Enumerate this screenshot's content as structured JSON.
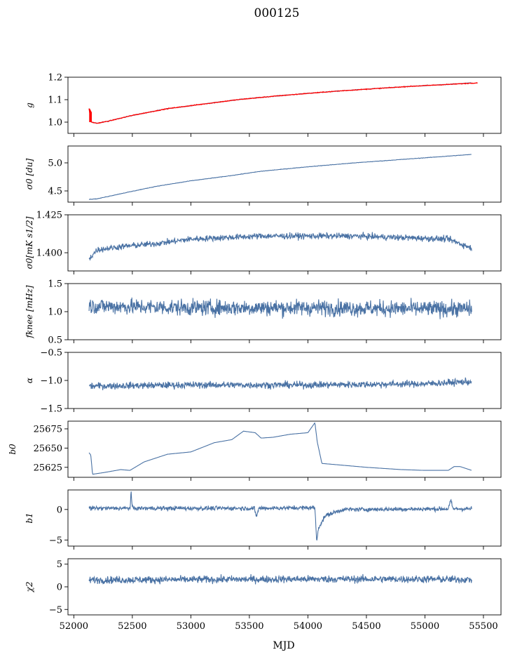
{
  "figure": {
    "title": "000125",
    "xlabel": "MJD",
    "line_color": "#4a72a4",
    "fit_color": "#ff0000"
  },
  "chart_data": [
    {
      "type": "line",
      "ylabel": "g",
      "ylim": [
        0.95,
        1.2
      ],
      "yticks": [
        1.0,
        1.1,
        1.2
      ],
      "ytick_labels": [
        "1.0",
        "1.1",
        "1.2"
      ],
      "xlim": [
        51950,
        55650
      ],
      "series": [
        {
          "shape": "smooth",
          "color": "#4a72a4",
          "x": [
            52130,
            52150,
            52200,
            52300,
            52500,
            52800,
            53100,
            53400,
            53700,
            54000,
            54300,
            54600,
            54900,
            55200,
            55400
          ],
          "y": [
            1.06,
            1.0,
            0.995,
            1.005,
            1.03,
            1.06,
            1.08,
            1.1,
            1.115,
            1.128,
            1.14,
            1.15,
            1.16,
            1.168,
            1.175
          ]
        },
        {
          "shape": "smooth",
          "color": "#ff0000",
          "x": [
            52130,
            52150,
            52200,
            52300,
            52500,
            52800,
            53100,
            53400,
            53700,
            54000,
            54300,
            54600,
            54900,
            55200,
            55450
          ],
          "y": [
            1.06,
            1.0,
            0.995,
            1.005,
            1.03,
            1.06,
            1.08,
            1.1,
            1.115,
            1.128,
            1.14,
            1.15,
            1.16,
            1.168,
            1.175
          ]
        }
      ]
    },
    {
      "type": "line",
      "ylabel": "σ0 [du]",
      "ylim": [
        4.3,
        5.3
      ],
      "yticks": [
        4.5,
        5.0
      ],
      "ytick_labels": [
        "4.5",
        "5.0"
      ],
      "xlim": [
        51950,
        55650
      ],
      "series": [
        {
          "shape": "smooth",
          "color": "#4a72a4",
          "x": [
            52130,
            52200,
            52400,
            52700,
            53000,
            53300,
            53600,
            54000,
            54400,
            54800,
            55200,
            55400
          ],
          "y": [
            4.35,
            4.36,
            4.45,
            4.58,
            4.68,
            4.76,
            4.85,
            4.93,
            5.0,
            5.06,
            5.12,
            5.15
          ]
        }
      ]
    },
    {
      "type": "line",
      "ylabel": "σ0[mK s1/2]",
      "ylim": [
        1.388,
        1.425
      ],
      "yticks": [
        1.4,
        1.425
      ],
      "ytick_labels": [
        "1.400",
        "1.425"
      ],
      "xlim": [
        51950,
        55650
      ],
      "series": [
        {
          "shape": "noisy",
          "color": "#4a72a4",
          "x": [
            52130,
            52200,
            52400,
            52700,
            53000,
            53300,
            53600,
            54000,
            54400,
            54800,
            55200,
            55400
          ],
          "y": [
            1.396,
            1.402,
            1.404,
            1.406,
            1.409,
            1.41,
            1.411,
            1.411,
            1.411,
            1.41,
            1.409,
            1.403
          ],
          "amp": 0.002
        }
      ]
    },
    {
      "type": "line",
      "ylabel": "fknee [mHz]",
      "ylim": [
        0.5,
        1.5
      ],
      "yticks": [
        0.5,
        1.0,
        1.5
      ],
      "ytick_labels": [
        "0.5",
        "1.0",
        "1.5"
      ],
      "xlim": [
        51950,
        55650
      ],
      "series": [
        {
          "shape": "noisy",
          "color": "#4a72a4",
          "x": [
            52130,
            53000,
            54000,
            55000,
            55400
          ],
          "y": [
            1.1,
            1.07,
            1.07,
            1.05,
            1.05
          ],
          "amp": 0.14
        }
      ]
    },
    {
      "type": "line",
      "ylabel": "α",
      "ylim": [
        -1.5,
        -0.5
      ],
      "yticks": [
        -1.5,
        -1.0,
        -0.5
      ],
      "ytick_labels": [
        "−1.5",
        "−1.0",
        "−0.5"
      ],
      "xlim": [
        51950,
        55650
      ],
      "series": [
        {
          "shape": "noisy",
          "color": "#4a72a4",
          "x": [
            52130,
            53000,
            54000,
            55000,
            55400
          ],
          "y": [
            -1.1,
            -1.08,
            -1.08,
            -1.06,
            -1.02
          ],
          "amp": 0.06
        }
      ]
    },
    {
      "type": "line",
      "ylabel": "b0",
      "ylim": [
        25612,
        25685
      ],
      "yticks": [
        25625,
        25650,
        25675
      ],
      "ytick_labels": [
        "25625",
        "25650",
        "25675"
      ],
      "xlim": [
        51950,
        55650
      ],
      "series": [
        {
          "shape": "smooth",
          "color": "#4a72a4",
          "x": [
            52130,
            52145,
            52160,
            52250,
            52400,
            52480,
            52600,
            52800,
            53000,
            53200,
            53350,
            53450,
            53550,
            53600,
            53700,
            53850,
            54000,
            54060,
            54080,
            54120,
            54200,
            54500,
            54800,
            55000,
            55200,
            55250,
            55300,
            55400
          ],
          "y": [
            25644,
            25641,
            25616,
            25618,
            25622,
            25621,
            25632,
            25642,
            25645,
            25657,
            25661,
            25672,
            25670,
            25663,
            25664,
            25668,
            25670,
            25683,
            25658,
            25630,
            25629,
            25625,
            25622,
            25621,
            25621,
            25626,
            25626,
            25621
          ]
        }
      ]
    },
    {
      "type": "line",
      "ylabel": "b1",
      "ylim": [
        -6,
        3.2
      ],
      "yticks": [
        -5,
        0
      ],
      "ytick_labels": [
        "−5",
        "0"
      ],
      "xlim": [
        51950,
        55650
      ],
      "series": [
        {
          "shape": "noisy",
          "color": "#4a72a4",
          "x": [
            52130,
            52480,
            52490,
            52500,
            53540,
            53560,
            53580,
            54060,
            54075,
            54090,
            54150,
            54300,
            55200,
            55220,
            55240,
            55400
          ],
          "y": [
            0.2,
            0.2,
            2.8,
            0.2,
            0.2,
            -1.2,
            0.2,
            0.3,
            -5.4,
            -3.0,
            -1.0,
            0.0,
            0.1,
            1.5,
            0.1,
            0.1
          ],
          "amp": 0.35
        }
      ]
    },
    {
      "type": "line",
      "ylabel": "χ2",
      "ylim": [
        -6.2,
        6.2
      ],
      "yticks": [
        -5,
        0,
        5
      ],
      "ytick_labels": [
        "−5",
        "0",
        "5"
      ],
      "xlim": [
        51950,
        55650
      ],
      "series": [
        {
          "shape": "noisy",
          "color": "#4a72a4",
          "x": [
            52130,
            53000,
            54000,
            55000,
            55400
          ],
          "y": [
            1.5,
            1.6,
            1.7,
            1.7,
            1.6
          ],
          "amp": 0.8
        }
      ]
    }
  ],
  "xaxis": {
    "ticks": [
      52000,
      52500,
      53000,
      53500,
      54000,
      54500,
      55000,
      55500
    ],
    "tick_labels": [
      "52000",
      "52500",
      "53000",
      "53500",
      "54000",
      "54500",
      "55000",
      "55500"
    ]
  }
}
